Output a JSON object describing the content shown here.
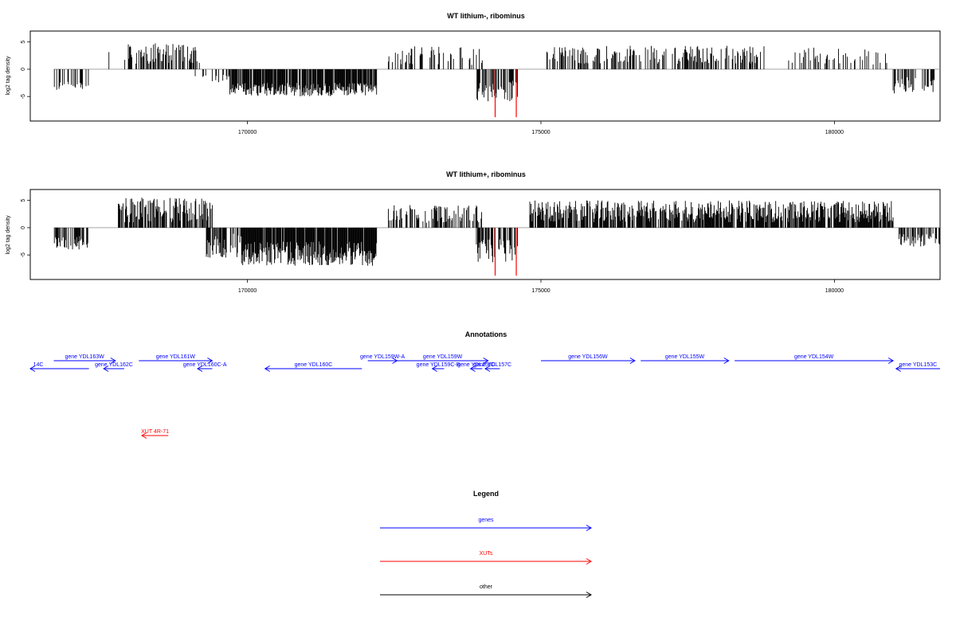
{
  "colors": {
    "gene": "#0000ff",
    "xut": "#ff0000",
    "other": "#000000",
    "axis": "#000000",
    "baseline": "#9a9a9a",
    "bar": "#000000",
    "highlight": "#ff0000"
  },
  "chart_data": [
    {
      "type": "bar",
      "title": "WT lithium-, ribominus",
      "xlabel": "",
      "ylabel": "log2 tag density",
      "xlim": [
        166300,
        181800
      ],
      "ylim": [
        -9.5,
        7
      ],
      "x_ticks": [
        170000,
        175000,
        180000
      ],
      "x_tick_labels": [
        "170000",
        "175000",
        "180000"
      ],
      "y_ticks": [
        -5,
        0,
        5
      ],
      "y_tick_labels": [
        "-5",
        "0",
        "5"
      ],
      "grid": false,
      "segments": [
        {
          "from": 166700,
          "to": 167300,
          "sign": -1,
          "lo": 2.0,
          "hi": 4.0,
          "density": 0.35
        },
        {
          "from": 167600,
          "to": 167700,
          "sign": 1,
          "lo": 2.5,
          "hi": 3.5,
          "density": 0.2
        },
        {
          "from": 167900,
          "to": 169200,
          "sign": 1,
          "lo": 1.0,
          "hi": 4.8,
          "density": 0.55
        },
        {
          "from": 169100,
          "to": 169700,
          "sign": -1,
          "lo": 1.0,
          "hi": 2.5,
          "density": 0.3
        },
        {
          "from": 169700,
          "to": 172200,
          "sign": -1,
          "lo": 2.5,
          "hi": 5.0,
          "density": 0.85
        },
        {
          "from": 172400,
          "to": 174000,
          "sign": 1,
          "lo": 0.8,
          "hi": 4.2,
          "density": 0.3
        },
        {
          "from": 173900,
          "to": 174600,
          "sign": -1,
          "lo": 2.0,
          "hi": 6.0,
          "density": 0.55
        },
        {
          "from": 175100,
          "to": 178800,
          "sign": 1,
          "lo": 1.0,
          "hi": 4.3,
          "density": 0.4
        },
        {
          "from": 179200,
          "to": 180900,
          "sign": 1,
          "lo": 0.8,
          "hi": 4.0,
          "density": 0.28
        },
        {
          "from": 181000,
          "to": 181700,
          "sign": -1,
          "lo": 1.2,
          "hi": 4.5,
          "density": 0.4
        }
      ],
      "highlight_x": [
        174220,
        174580
      ],
      "highlight_y": -8.8
    },
    {
      "type": "bar",
      "title": "WT lithium+, ribominus",
      "xlabel": "",
      "ylabel": "log2 tag density",
      "xlim": [
        166300,
        181800
      ],
      "ylim": [
        -9.5,
        7
      ],
      "x_ticks": [
        170000,
        175000,
        180000
      ],
      "x_tick_labels": [
        "170000",
        "175000",
        "180000"
      ],
      "y_ticks": [
        -5,
        0,
        5
      ],
      "y_tick_labels": [
        "-5",
        "0",
        "5"
      ],
      "grid": false,
      "segments": [
        {
          "from": 166700,
          "to": 167300,
          "sign": -1,
          "lo": 1.5,
          "hi": 4.0,
          "density": 0.55
        },
        {
          "from": 167800,
          "to": 169400,
          "sign": 1,
          "lo": 1.0,
          "hi": 5.5,
          "density": 0.75
        },
        {
          "from": 169300,
          "to": 169900,
          "sign": -1,
          "lo": 1.0,
          "hi": 5.5,
          "density": 0.6
        },
        {
          "from": 169900,
          "to": 172200,
          "sign": -1,
          "lo": 2.5,
          "hi": 7.0,
          "density": 0.95
        },
        {
          "from": 172400,
          "to": 174000,
          "sign": 1,
          "lo": 0.8,
          "hi": 4.2,
          "density": 0.45
        },
        {
          "from": 173900,
          "to": 174600,
          "sign": -1,
          "lo": 2.0,
          "hi": 6.5,
          "density": 0.6
        },
        {
          "from": 174800,
          "to": 181000,
          "sign": 1,
          "lo": 1.0,
          "hi": 5.0,
          "density": 0.8
        },
        {
          "from": 181100,
          "to": 181800,
          "sign": -1,
          "lo": 1.0,
          "hi": 3.5,
          "density": 0.5
        }
      ],
      "highlight_x": [
        174220,
        174580
      ],
      "highlight_y": -8.8
    }
  ],
  "annotations": {
    "title": "Annotations",
    "genes": [
      {
        "label": "gene YDL163W",
        "from": 166700,
        "to": 167750,
        "row": 0,
        "strand": "+"
      },
      {
        "label": "gene YDL161W",
        "from": 168150,
        "to": 169400,
        "row": 0,
        "strand": "+"
      },
      {
        "label": "gene YDL159W-A",
        "from": 172050,
        "to": 172550,
        "row": 0,
        "strand": "+"
      },
      {
        "label": "gene YDL159W",
        "from": 172550,
        "to": 174100,
        "row": 0,
        "strand": "+"
      },
      {
        "label": "gene YDL156W",
        "from": 175000,
        "to": 176600,
        "row": 0,
        "strand": "+"
      },
      {
        "label": "gene YDL155W",
        "from": 176700,
        "to": 178200,
        "row": 0,
        "strand": "+"
      },
      {
        "label": "gene YDL154W",
        "from": 178300,
        "to": 181000,
        "row": 0,
        "strand": "+"
      },
      {
        "label": "14C",
        "from": 166300,
        "to": 167300,
        "row": 1,
        "strand": "-"
      },
      {
        "label": "gene YDL162C",
        "from": 167550,
        "to": 167900,
        "row": 1,
        "strand": "-"
      },
      {
        "label": "gene YDL160C-A",
        "from": 169150,
        "to": 169400,
        "row": 1,
        "strand": "-"
      },
      {
        "label": "gene YDL160C",
        "from": 170300,
        "to": 171950,
        "row": 1,
        "strand": "-"
      },
      {
        "label": "gene YDL159C-B",
        "from": 173150,
        "to": 173350,
        "row": 1,
        "strand": "-"
      },
      {
        "label": "gene YDL158C",
        "from": 173800,
        "to": 174000,
        "row": 1,
        "strand": "-"
      },
      {
        "label": "gene YDL157C",
        "from": 174050,
        "to": 174300,
        "row": 1,
        "strand": "-"
      },
      {
        "label": "gene YDL153C",
        "from": 181050,
        "to": 181800,
        "row": 1,
        "strand": "-"
      }
    ],
    "xuts": [
      {
        "label": "XUT 4R-71",
        "from": 168200,
        "to": 168650,
        "strand": "-"
      }
    ]
  },
  "legend": {
    "title": "Legend",
    "items": [
      {
        "label": "genes",
        "kind": "gene"
      },
      {
        "label": "XUTs",
        "kind": "xut"
      },
      {
        "label": "other",
        "kind": "other"
      }
    ]
  }
}
